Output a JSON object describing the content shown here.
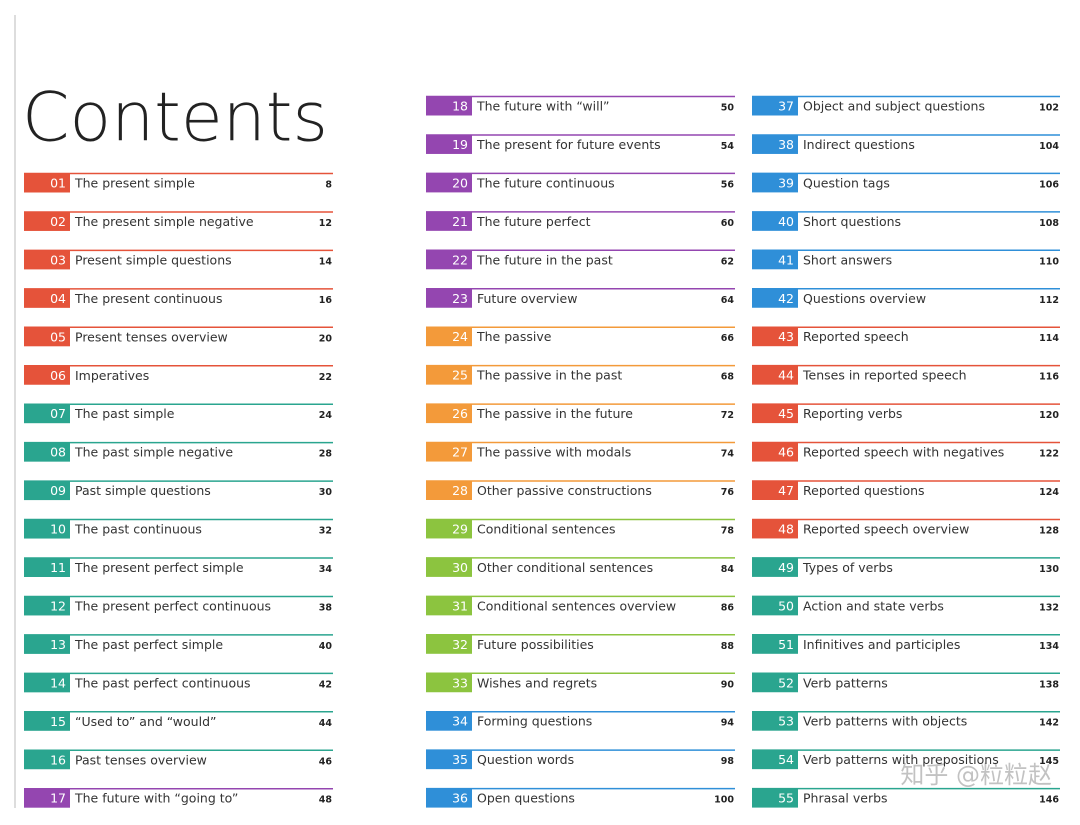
{
  "title": "Contents",
  "watermark": "知乎 @粒粒赵",
  "columns": [
    [
      {
        "number": "01",
        "title": "The present simple",
        "page": "8",
        "color": "#e5533a"
      },
      {
        "number": "02",
        "title": "The present simple negative",
        "page": "12",
        "color": "#e5533a"
      },
      {
        "number": "03",
        "title": "Present simple questions",
        "page": "14",
        "color": "#e5533a"
      },
      {
        "number": "04",
        "title": "The present continuous",
        "page": "16",
        "color": "#e5533a"
      },
      {
        "number": "05",
        "title": "Present tenses overview",
        "page": "20",
        "color": "#e5533a"
      },
      {
        "number": "06",
        "title": "Imperatives",
        "page": "22",
        "color": "#e5533a"
      },
      {
        "number": "07",
        "title": "The past simple",
        "page": "24",
        "color": "#2aa58f"
      },
      {
        "number": "08",
        "title": "The past simple negative",
        "page": "28",
        "color": "#2aa58f"
      },
      {
        "number": "09",
        "title": "Past simple questions",
        "page": "30",
        "color": "#2aa58f"
      },
      {
        "number": "10",
        "title": "The past continuous",
        "page": "32",
        "color": "#2aa58f"
      },
      {
        "number": "11",
        "title": "The present perfect simple",
        "page": "34",
        "color": "#2aa58f"
      },
      {
        "number": "12",
        "title": "The present perfect continuous",
        "page": "38",
        "color": "#2aa58f"
      },
      {
        "number": "13",
        "title": "The past perfect simple",
        "page": "40",
        "color": "#2aa58f"
      },
      {
        "number": "14",
        "title": "The past perfect continuous",
        "page": "42",
        "color": "#2aa58f"
      },
      {
        "number": "15",
        "title": "“Used to” and “would”",
        "page": "44",
        "color": "#2aa58f"
      },
      {
        "number": "16",
        "title": "Past tenses overview",
        "page": "46",
        "color": "#2aa58f"
      },
      {
        "number": "17",
        "title": "The future with “going to”",
        "page": "48",
        "color": "#9446b0"
      }
    ],
    [
      {
        "number": "18",
        "title": "The future with “will”",
        "page": "50",
        "color": "#9446b0"
      },
      {
        "number": "19",
        "title": "The present for future events",
        "page": "54",
        "color": "#9446b0"
      },
      {
        "number": "20",
        "title": "The future continuous",
        "page": "56",
        "color": "#9446b0"
      },
      {
        "number": "21",
        "title": "The future perfect",
        "page": "60",
        "color": "#9446b0"
      },
      {
        "number": "22",
        "title": "The future in the past",
        "page": "62",
        "color": "#9446b0"
      },
      {
        "number": "23",
        "title": "Future overview",
        "page": "64",
        "color": "#9446b0"
      },
      {
        "number": "24",
        "title": "The passive",
        "page": "66",
        "color": "#f39a3a"
      },
      {
        "number": "25",
        "title": "The passive in the past",
        "page": "68",
        "color": "#f39a3a"
      },
      {
        "number": "26",
        "title": "The passive in the future",
        "page": "72",
        "color": "#f39a3a"
      },
      {
        "number": "27",
        "title": "The passive with modals",
        "page": "74",
        "color": "#f39a3a"
      },
      {
        "number": "28",
        "title": "Other passive constructions",
        "page": "76",
        "color": "#f39a3a"
      },
      {
        "number": "29",
        "title": "Conditional sentences",
        "page": "78",
        "color": "#8cc43f"
      },
      {
        "number": "30",
        "title": "Other conditional sentences",
        "page": "84",
        "color": "#8cc43f"
      },
      {
        "number": "31",
        "title": "Conditional sentences overview",
        "page": "86",
        "color": "#8cc43f"
      },
      {
        "number": "32",
        "title": "Future possibilities",
        "page": "88",
        "color": "#8cc43f"
      },
      {
        "number": "33",
        "title": "Wishes and regrets",
        "page": "90",
        "color": "#8cc43f"
      },
      {
        "number": "34",
        "title": "Forming questions",
        "page": "94",
        "color": "#2f8fd8"
      },
      {
        "number": "35",
        "title": "Question words",
        "page": "98",
        "color": "#2f8fd8"
      },
      {
        "number": "36",
        "title": "Open questions",
        "page": "100",
        "color": "#2f8fd8"
      }
    ],
    [
      {
        "number": "37",
        "title": "Object and subject questions",
        "page": "102",
        "color": "#2f8fd8"
      },
      {
        "number": "38",
        "title": "Indirect questions",
        "page": "104",
        "color": "#2f8fd8"
      },
      {
        "number": "39",
        "title": "Question tags",
        "page": "106",
        "color": "#2f8fd8"
      },
      {
        "number": "40",
        "title": "Short questions",
        "page": "108",
        "color": "#2f8fd8"
      },
      {
        "number": "41",
        "title": "Short answers",
        "page": "110",
        "color": "#2f8fd8"
      },
      {
        "number": "42",
        "title": "Questions overview",
        "page": "112",
        "color": "#2f8fd8"
      },
      {
        "number": "43",
        "title": "Reported speech",
        "page": "114",
        "color": "#e5533a"
      },
      {
        "number": "44",
        "title": "Tenses in reported speech",
        "page": "116",
        "color": "#e5533a"
      },
      {
        "number": "45",
        "title": "Reporting verbs",
        "page": "120",
        "color": "#e5533a"
      },
      {
        "number": "46",
        "title": "Reported speech with negatives",
        "page": "122",
        "color": "#e5533a"
      },
      {
        "number": "47",
        "title": "Reported questions",
        "page": "124",
        "color": "#e5533a"
      },
      {
        "number": "48",
        "title": "Reported speech overview",
        "page": "128",
        "color": "#e5533a"
      },
      {
        "number": "49",
        "title": "Types of verbs",
        "page": "130",
        "color": "#2aa58f"
      },
      {
        "number": "50",
        "title": "Action and state verbs",
        "page": "132",
        "color": "#2aa58f"
      },
      {
        "number": "51",
        "title": "Infinitives and participles",
        "page": "134",
        "color": "#2aa58f"
      },
      {
        "number": "52",
        "title": "Verb patterns",
        "page": "138",
        "color": "#2aa58f"
      },
      {
        "number": "53",
        "title": "Verb patterns with objects",
        "page": "142",
        "color": "#2aa58f"
      },
      {
        "number": "54",
        "title": "Verb patterns with prepositions",
        "page": "145",
        "color": "#2aa58f"
      },
      {
        "number": "55",
        "title": "Phrasal verbs",
        "page": "146",
        "color": "#2aa58f"
      }
    ]
  ]
}
